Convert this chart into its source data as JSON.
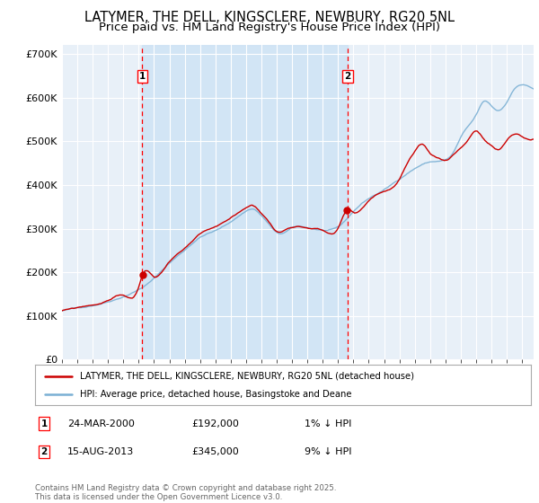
{
  "title": "LATYMER, THE DELL, KINGSCLERE, NEWBURY, RG20 5NL",
  "subtitle": "Price paid vs. HM Land Registry's House Price Index (HPI)",
  "ylim": [
    0,
    720000
  ],
  "yticks": [
    0,
    100000,
    200000,
    300000,
    400000,
    500000,
    600000,
    700000
  ],
  "ytick_labels": [
    "£0",
    "£100K",
    "£200K",
    "£300K",
    "£400K",
    "£500K",
    "£600K",
    "£700K"
  ],
  "line_color_red": "#cc0000",
  "line_color_blue": "#7ab0d4",
  "fill_color": "#d0e4f5",
  "marker1_x": 2000.23,
  "marker2_x": 2013.62,
  "legend_line1": "LATYMER, THE DELL, KINGSCLERE, NEWBURY, RG20 5NL (detached house)",
  "legend_line2": "HPI: Average price, detached house, Basingstoke and Deane",
  "footer": "Contains HM Land Registry data © Crown copyright and database right 2025.\nThis data is licensed under the Open Government Licence v3.0.",
  "title_fontsize": 10.5,
  "subtitle_fontsize": 9.5
}
